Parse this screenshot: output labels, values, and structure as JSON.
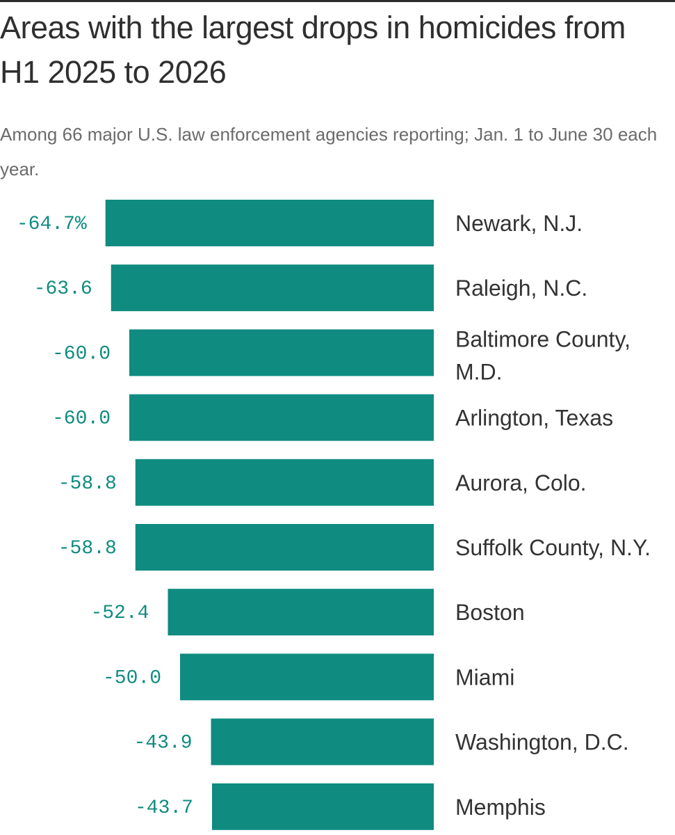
{
  "title": "Areas with the largest drops in homicides from H1 2025 to 2026",
  "subtitle": "Among 66 major U.S. law enforcement agencies reporting; Jan. 1 to June 30 each year.",
  "colors": {
    "bar": "#0f8b80",
    "value_text": "#0f8b80",
    "label_text": "#333333"
  },
  "chart_data": {
    "type": "bar",
    "orientation": "horizontal",
    "categories": [
      [
        "Newark, N.J."
      ],
      [
        "Raleigh, N.C."
      ],
      [
        "Baltimore County,",
        "M.D."
      ],
      [
        "Arlington, Texas"
      ],
      [
        "Aurora, Colo."
      ],
      [
        "Suffolk County, N.Y."
      ],
      [
        "Boston"
      ],
      [
        "Miami"
      ],
      [
        "Washington, D.C."
      ],
      [
        "Memphis"
      ]
    ],
    "values": [
      -64.7,
      -63.6,
      -60.0,
      -60.0,
      -58.8,
      -58.8,
      -52.4,
      -50.0,
      -43.9,
      -43.7
    ],
    "value_labels": [
      "-64.7%",
      "-63.6",
      "-60.0",
      "-60.0",
      "-58.8",
      "-58.8",
      "-52.4",
      "-50.0",
      "-43.9",
      "-43.7"
    ],
    "grid": false,
    "legend": "none"
  }
}
